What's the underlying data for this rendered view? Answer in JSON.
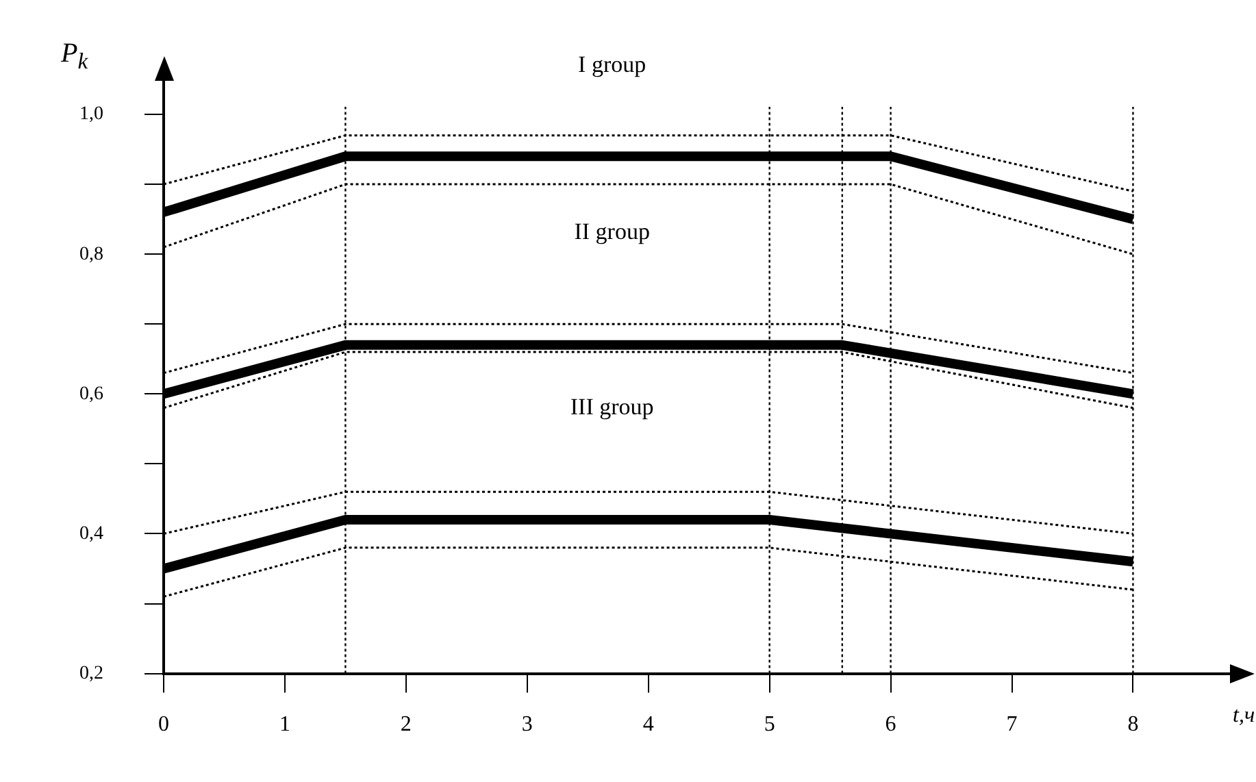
{
  "chart_data": {
    "type": "line",
    "ylabel": "P$_{k}$",
    "xlabel": "t,ч",
    "xlim": [
      0,
      8.8
    ],
    "xticks": [
      0,
      1,
      2,
      3,
      4,
      5,
      6,
      7,
      8
    ],
    "ylim": [
      0.2,
      1.05
    ],
    "yticks": [
      {
        "value": 0.2,
        "label": "0,2"
      },
      {
        "value": 0.3,
        "label": null
      },
      {
        "value": 0.4,
        "label": "0,4"
      },
      {
        "value": 0.5,
        "label": null
      },
      {
        "value": 0.6,
        "label": "0,6"
      },
      {
        "value": 0.7,
        "label": null
      },
      {
        "value": 0.8,
        "label": "0,8"
      },
      {
        "value": 0.9,
        "label": null
      },
      {
        "value": 1.0,
        "label": "1,0"
      }
    ],
    "grid": false,
    "legend": false,
    "marker": "none",
    "series": [
      {
        "color": "#000000",
        "x": [
          0,
          1.5,
          6,
          8
        ],
        "values": [
          0.86,
          0.94,
          0.94,
          0.85
        ]
      },
      {
        "color": "#000000",
        "x": [
          0,
          1.5,
          6,
          8
        ],
        "values": [
          0.9,
          0.97,
          0.97,
          0.89
        ],
        "line_style": "dotted"
      },
      {
        "color": "#000000",
        "x": [
          0,
          1.5,
          6,
          8
        ],
        "values": [
          0.81,
          0.9,
          0.9,
          0.8
        ],
        "line_style": "dotted"
      },
      {
        "color": "#000000",
        "x": [
          0,
          1.5,
          5.6,
          8
        ],
        "values": [
          0.6,
          0.67,
          0.67,
          0.6
        ]
      },
      {
        "color": "#000000",
        "x": [
          0,
          1.5,
          5.6,
          8
        ],
        "values": [
          0.63,
          0.7,
          0.7,
          0.63
        ],
        "line_style": "dotted"
      },
      {
        "color": "#000000",
        "x": [
          0,
          1.5,
          5.6,
          8
        ],
        "values": [
          0.58,
          0.66,
          0.66,
          0.58
        ],
        "line_style": "dotted"
      },
      {
        "color": "#000000",
        "x": [
          0,
          1.5,
          5,
          8
        ],
        "values": [
          0.35,
          0.42,
          0.42,
          0.36
        ]
      },
      {
        "color": "#000000",
        "x": [
          0,
          1.5,
          5,
          8
        ],
        "values": [
          0.4,
          0.46,
          0.46,
          0.4
        ],
        "line_style": "dotted"
      },
      {
        "color": "#000000",
        "x": [
          0,
          1.5,
          5,
          8
        ],
        "values": [
          0.31,
          0.38,
          0.38,
          0.32
        ],
        "line_style": "dotted"
      }
    ],
    "ref_lines": [
      {
        "axis": "x",
        "value": 1.5,
        "line_style": "dotted"
      },
      {
        "axis": "x",
        "value": 5,
        "line_style": "dotted"
      },
      {
        "axis": "x",
        "value": 5.6,
        "line_style": "dotted"
      },
      {
        "axis": "x",
        "value": 6,
        "line_style": "dotted"
      },
      {
        "axis": "x",
        "value": 8,
        "line_style": "dotted"
      }
    ],
    "annotations": [
      "I group",
      "II group",
      "III group"
    ]
  }
}
